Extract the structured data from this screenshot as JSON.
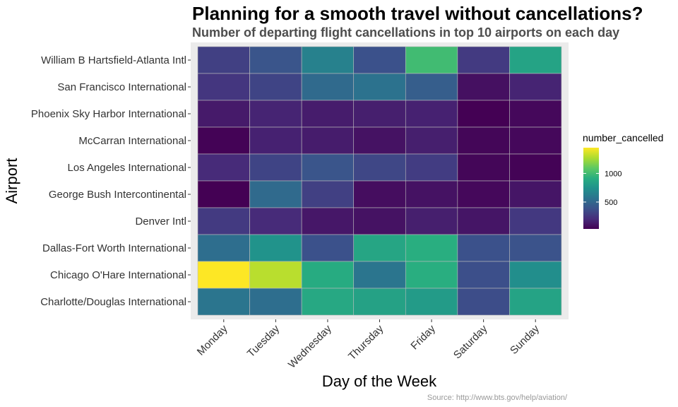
{
  "chart_data": {
    "type": "heatmap",
    "title": "Planning for a smooth travel without cancellations?",
    "subtitle": "Number of departing flight cancellations in top 10 airports on each day",
    "xlabel": "Day of the Week",
    "ylabel": "Airport",
    "caption": "Source: http://www.bts.gov/help/aviation/",
    "x_categories": [
      "Monday",
      "Tuesday",
      "Wednesday",
      "Thursday",
      "Friday",
      "Saturday",
      "Sunday"
    ],
    "y_categories_top_to_bottom": [
      "William B Hartsfield-Atlanta Intl",
      "San Francisco International",
      "Phoenix Sky Harbor International",
      "McCarran International",
      "Los Angeles International",
      "George Bush Intercontinental",
      "Denver Intl",
      "Dallas-Fort Worth International",
      "Chicago O'Hare International",
      "Charlotte/Douglas International"
    ],
    "values": [
      [
        300,
        400,
        650,
        380,
        1000,
        270,
        850
      ],
      [
        250,
        320,
        520,
        560,
        450,
        90,
        170
      ],
      [
        130,
        170,
        140,
        150,
        160,
        30,
        60
      ],
      [
        40,
        160,
        140,
        100,
        150,
        50,
        60
      ],
      [
        200,
        320,
        400,
        330,
        280,
        50,
        40
      ],
      [
        30,
        520,
        300,
        80,
        100,
        60,
        110
      ],
      [
        270,
        200,
        120,
        100,
        150,
        110,
        260
      ],
      [
        540,
        750,
        380,
        860,
        920,
        380,
        390
      ],
      [
        1450,
        1300,
        900,
        580,
        920,
        370,
        720
      ],
      [
        580,
        540,
        880,
        840,
        800,
        360,
        850
      ]
    ],
    "color_scale": {
      "name": "viridis",
      "min": 30,
      "max": 1450,
      "legend_title": "number_cancelled",
      "legend_ticks": [
        500,
        1000
      ]
    },
    "grid": true,
    "legend_position": "right"
  }
}
